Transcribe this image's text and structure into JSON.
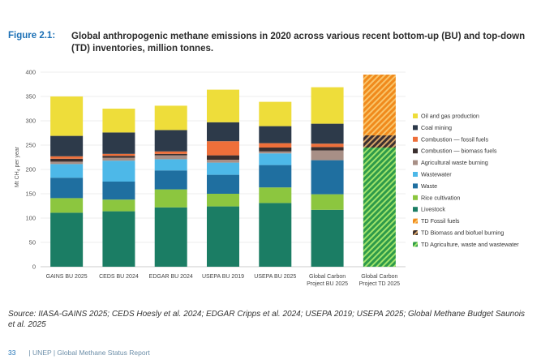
{
  "figure": {
    "label": "Figure 2.1:",
    "title": "Global anthropogenic methane emissions in 2020 across various recent bottom-up (BU) and top-down (TD) inventories, million tonnes."
  },
  "chart_data": {
    "type": "bar",
    "stacked": true,
    "ylabel_main": "Mt CH",
    "ylabel_sub": "4",
    "ylabel_tail": " per year",
    "ylim": [
      0,
      400
    ],
    "yticks": [
      0,
      50,
      100,
      150,
      200,
      250,
      300,
      350,
      400
    ],
    "categories": [
      [
        "GAINS BU 2025"
      ],
      [
        "CEDS BU 2024"
      ],
      [
        "EDGAR BU 2024"
      ],
      [
        "USEPA BU 2019"
      ],
      [
        "USEPA BU 2025"
      ],
      [
        "Global Carbon",
        "Project BU 2025"
      ],
      [
        "Global Carbon",
        "Project TD 2025"
      ]
    ],
    "series": [
      {
        "name": "Livestock",
        "color": "#1b7d64",
        "values": [
          111,
          114,
          122,
          124,
          131,
          117,
          0
        ]
      },
      {
        "name": "Rice cultivation",
        "color": "#8cc63f",
        "values": [
          30,
          24,
          37,
          26,
          32,
          32,
          0
        ]
      },
      {
        "name": "Waste",
        "color": "#1f6fa0",
        "values": [
          42,
          37,
          39,
          39,
          46,
          70,
          0
        ]
      },
      {
        "name": "Wastewater",
        "color": "#4db8e8",
        "values": [
          28,
          43,
          23,
          25,
          24,
          0,
          0
        ]
      },
      {
        "name": "Agricultural waste burning",
        "color": "#a88f86",
        "values": [
          5,
          6,
          8,
          6,
          4,
          20,
          0
        ]
      },
      {
        "name": "Combustion — biomass fuels",
        "color": "#3b2f2f",
        "values": [
          6,
          4,
          3,
          9,
          8,
          7,
          0
        ]
      },
      {
        "name": "Combustion — fossil fuels",
        "color": "#ee6f3a",
        "values": [
          5,
          4,
          5,
          29,
          9,
          7,
          0
        ]
      },
      {
        "name": "Coal mining",
        "color": "#2d3a4a",
        "values": [
          42,
          44,
          44,
          39,
          35,
          41,
          0
        ]
      },
      {
        "name": "Oil and gas production",
        "color": "#eedd3a",
        "values": [
          81,
          49,
          50,
          67,
          50,
          75,
          0
        ]
      },
      {
        "name": "TD Agriculture, waste and wastewater",
        "pattern": "ag",
        "values": [
          0,
          0,
          0,
          0,
          0,
          0,
          245
        ]
      },
      {
        "name": "TD Biomass and biofuel burning",
        "pattern": "bio",
        "values": [
          0,
          0,
          0,
          0,
          0,
          0,
          25
        ]
      },
      {
        "name": "TD Fossil fuels",
        "pattern": "fos",
        "values": [
          0,
          0,
          0,
          0,
          0,
          0,
          125
        ]
      }
    ],
    "legend_order": [
      "Oil and gas production",
      "Coal mining",
      "Combustion — fossil fuels",
      "Combustion — biomass fuels",
      "Agricultural waste burning",
      "Wastewater",
      "Waste",
      "Rice cultivation",
      "Livestock",
      "TD Fossil fuels",
      "TD Biomass and biofuel burning",
      "TD Agriculture, waste and wastewater"
    ],
    "pattern_colors": {
      "ag": [
        "#2e9a4a",
        "#9fe36a"
      ],
      "bio": [
        "#3b2f2f",
        "#d6a56a"
      ],
      "fos": [
        "#f08a1c",
        "#f9c46a"
      ]
    },
    "legend": "right"
  },
  "source": {
    "text": "Source: IIASA-GAINS 2025; CEDS Hoesly et al. 2024; EDGAR Cripps et al. 2024; USEPA 2019; USEPA 2025; Global Methane Budget Saunois et al. 2025"
  },
  "footer": {
    "page": "33",
    "text": "| UNEP | Global Methane Status Report"
  }
}
